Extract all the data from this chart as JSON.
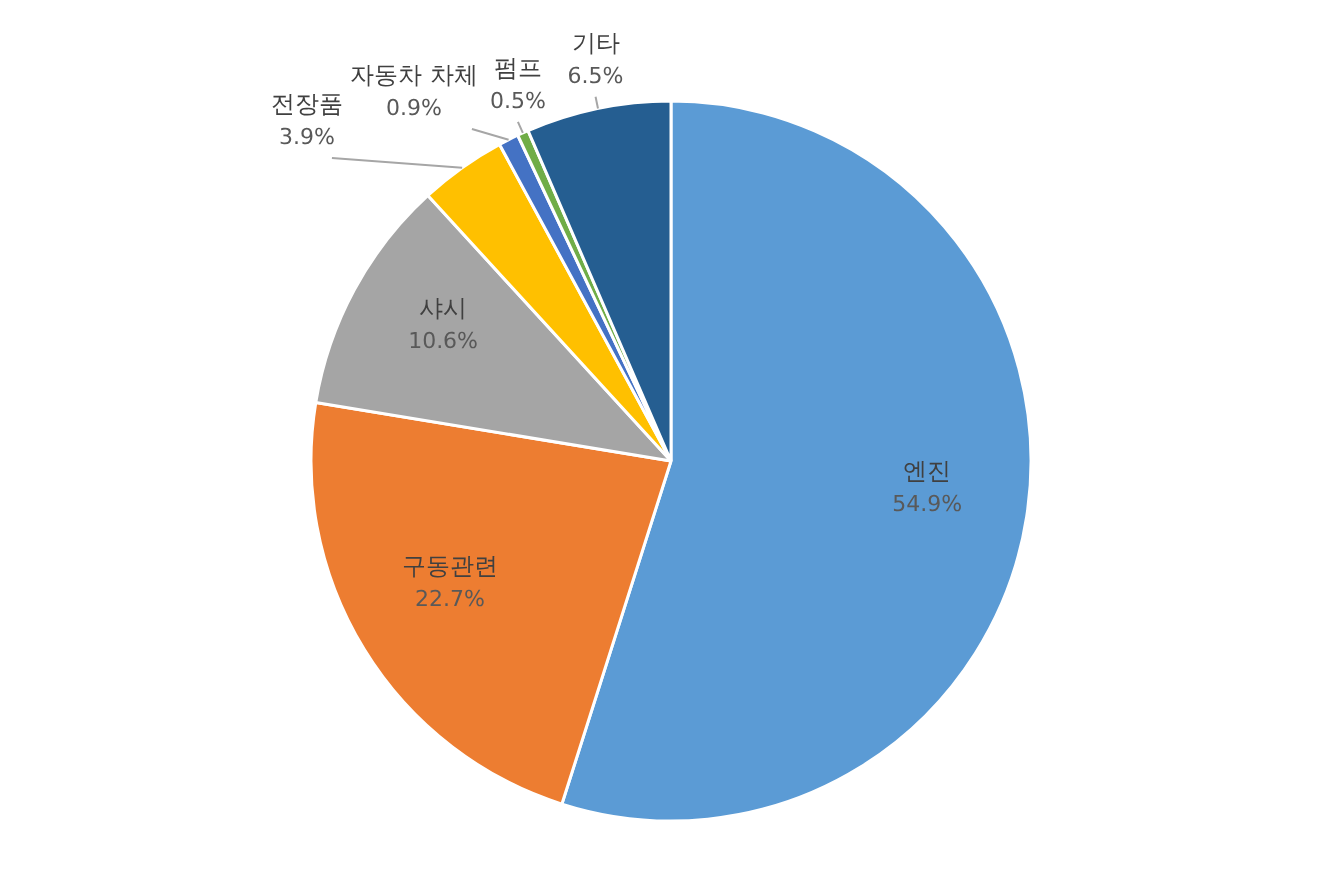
{
  "chart_data": {
    "type": "pie",
    "categories": [
      "엔진",
      "구동관련",
      "샤시",
      "전장품",
      "자동차 차체",
      "펌프",
      "기타"
    ],
    "values": [
      54.9,
      22.7,
      10.6,
      3.9,
      0.9,
      0.5,
      6.5
    ],
    "colors": [
      "#5b9bd5",
      "#ed7d31",
      "#a5a5a5",
      "#ffc000",
      "#4472c4",
      "#70ad47",
      "#255e91"
    ],
    "value_labels": [
      "54.9%",
      "22.7%",
      "10.6%",
      "3.9%",
      "0.9%",
      "0.5%",
      "6.5%"
    ]
  }
}
